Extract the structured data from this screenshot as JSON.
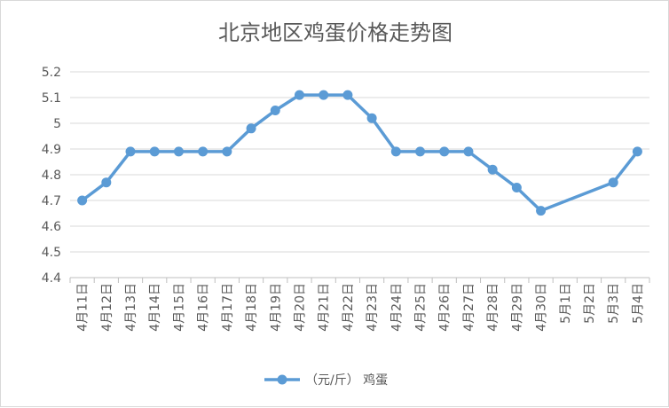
{
  "chart_data": {
    "type": "line",
    "title": "北京地区鸡蛋价格走势图",
    "xlabel": "",
    "ylabel": "",
    "categories": [
      "4月11日",
      "4月12日",
      "4月13日",
      "4月14日",
      "4月15日",
      "4月16日",
      "4月17日",
      "4月18日",
      "4月19日",
      "4月20日",
      "4月21日",
      "4月22日",
      "4月23日",
      "4月24日",
      "4月25日",
      "4月26日",
      "4月27日",
      "4月28日",
      "4月29日",
      "4月30日",
      "5月1日",
      "5月2日",
      "5月3日",
      "5月4日"
    ],
    "y_ticks": [
      "4.4",
      "4.5",
      "4.6",
      "4.7",
      "4.8",
      "4.9",
      "5",
      "5.1",
      "5.2"
    ],
    "ylim": [
      4.4,
      5.2
    ],
    "grid": true,
    "legend_position": "bottom",
    "series": [
      {
        "name": "（元/斤）  鸡蛋",
        "color": "#5b9bd5",
        "values": [
          4.7,
          4.77,
          4.89,
          4.89,
          4.89,
          4.89,
          4.89,
          4.98,
          5.05,
          5.11,
          5.11,
          5.11,
          5.02,
          4.89,
          4.89,
          4.89,
          4.89,
          4.82,
          4.75,
          4.66,
          null,
          null,
          4.77,
          4.89
        ]
      }
    ]
  }
}
